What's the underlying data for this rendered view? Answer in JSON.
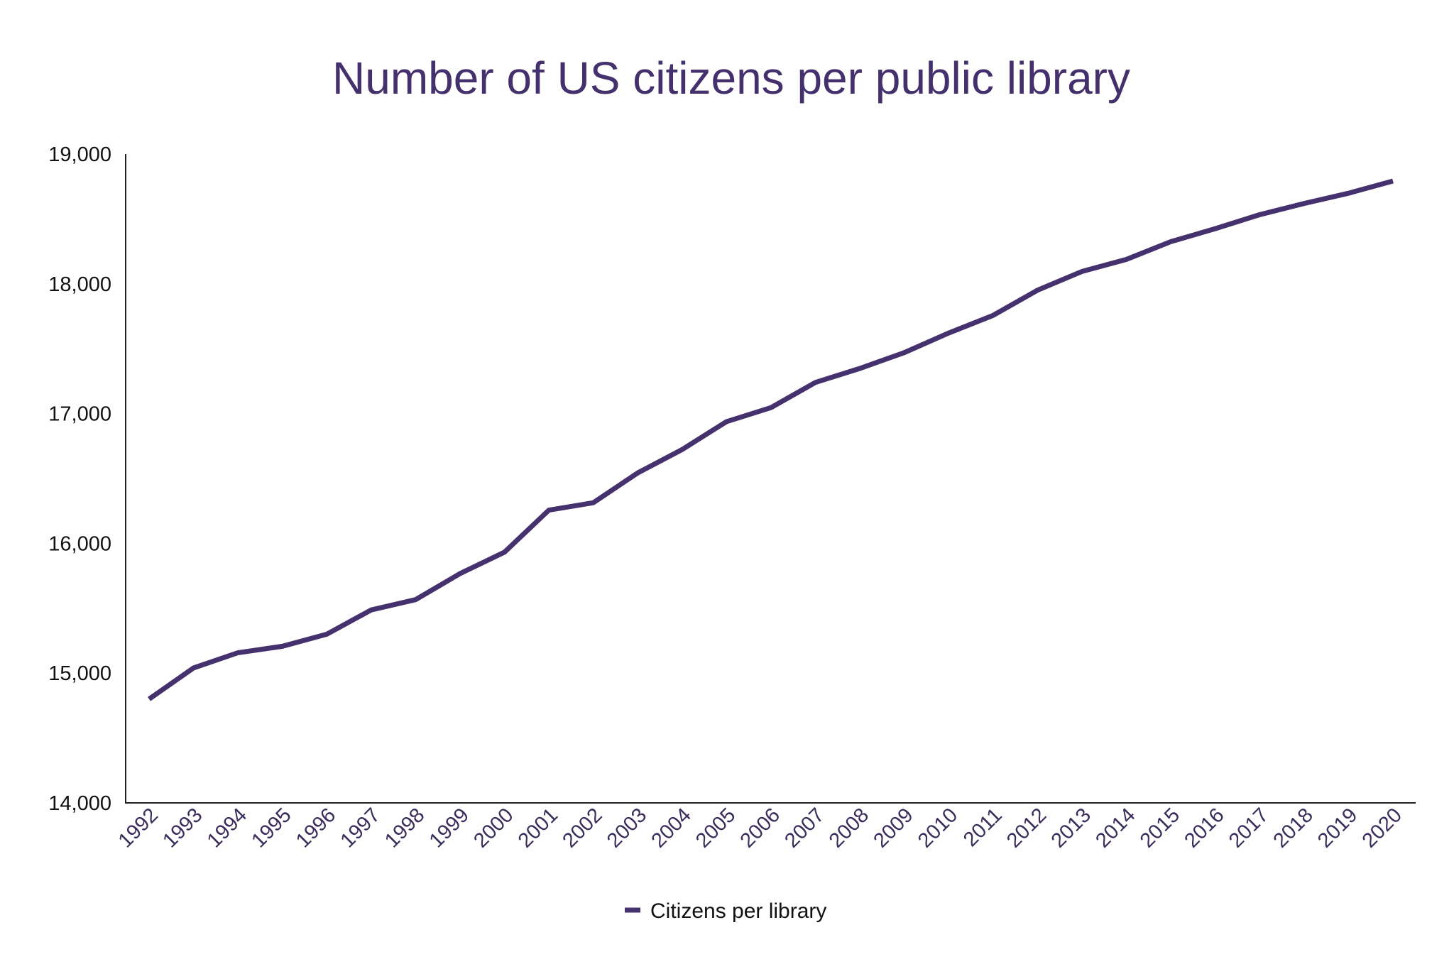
{
  "chart_data": {
    "type": "line",
    "title": "Number of US citizens per public library",
    "xlabel": "",
    "ylabel": "",
    "ylim": [
      14000,
      19000
    ],
    "yticks": [
      "14,000",
      "15,000",
      "16,000",
      "17,000",
      "18,000",
      "19,000"
    ],
    "ytick_values": [
      14000,
      15000,
      16000,
      17000,
      18000,
      19000
    ],
    "grid": false,
    "legend_position": "bottom",
    "categories": [
      "1992",
      "1993",
      "1994",
      "1995",
      "1996",
      "1997",
      "1998",
      "1999",
      "2000",
      "2001",
      "2002",
      "2003",
      "2004",
      "2005",
      "2006",
      "2007",
      "2008",
      "2009",
      "2010",
      "2011",
      "2012",
      "2013",
      "2014",
      "2015",
      "2016",
      "2017",
      "2018",
      "2019",
      "2020"
    ],
    "series": [
      {
        "name": "Citizens per library",
        "color": "#46316f",
        "values": [
          14800,
          15040,
          15157,
          15207,
          15300,
          15487,
          15566,
          15767,
          15932,
          16256,
          16313,
          16543,
          16723,
          16938,
          17046,
          17240,
          17348,
          17470,
          17621,
          17757,
          17951,
          18095,
          18188,
          18325,
          18425,
          18533,
          18619,
          18698,
          18792
        ]
      }
    ]
  }
}
